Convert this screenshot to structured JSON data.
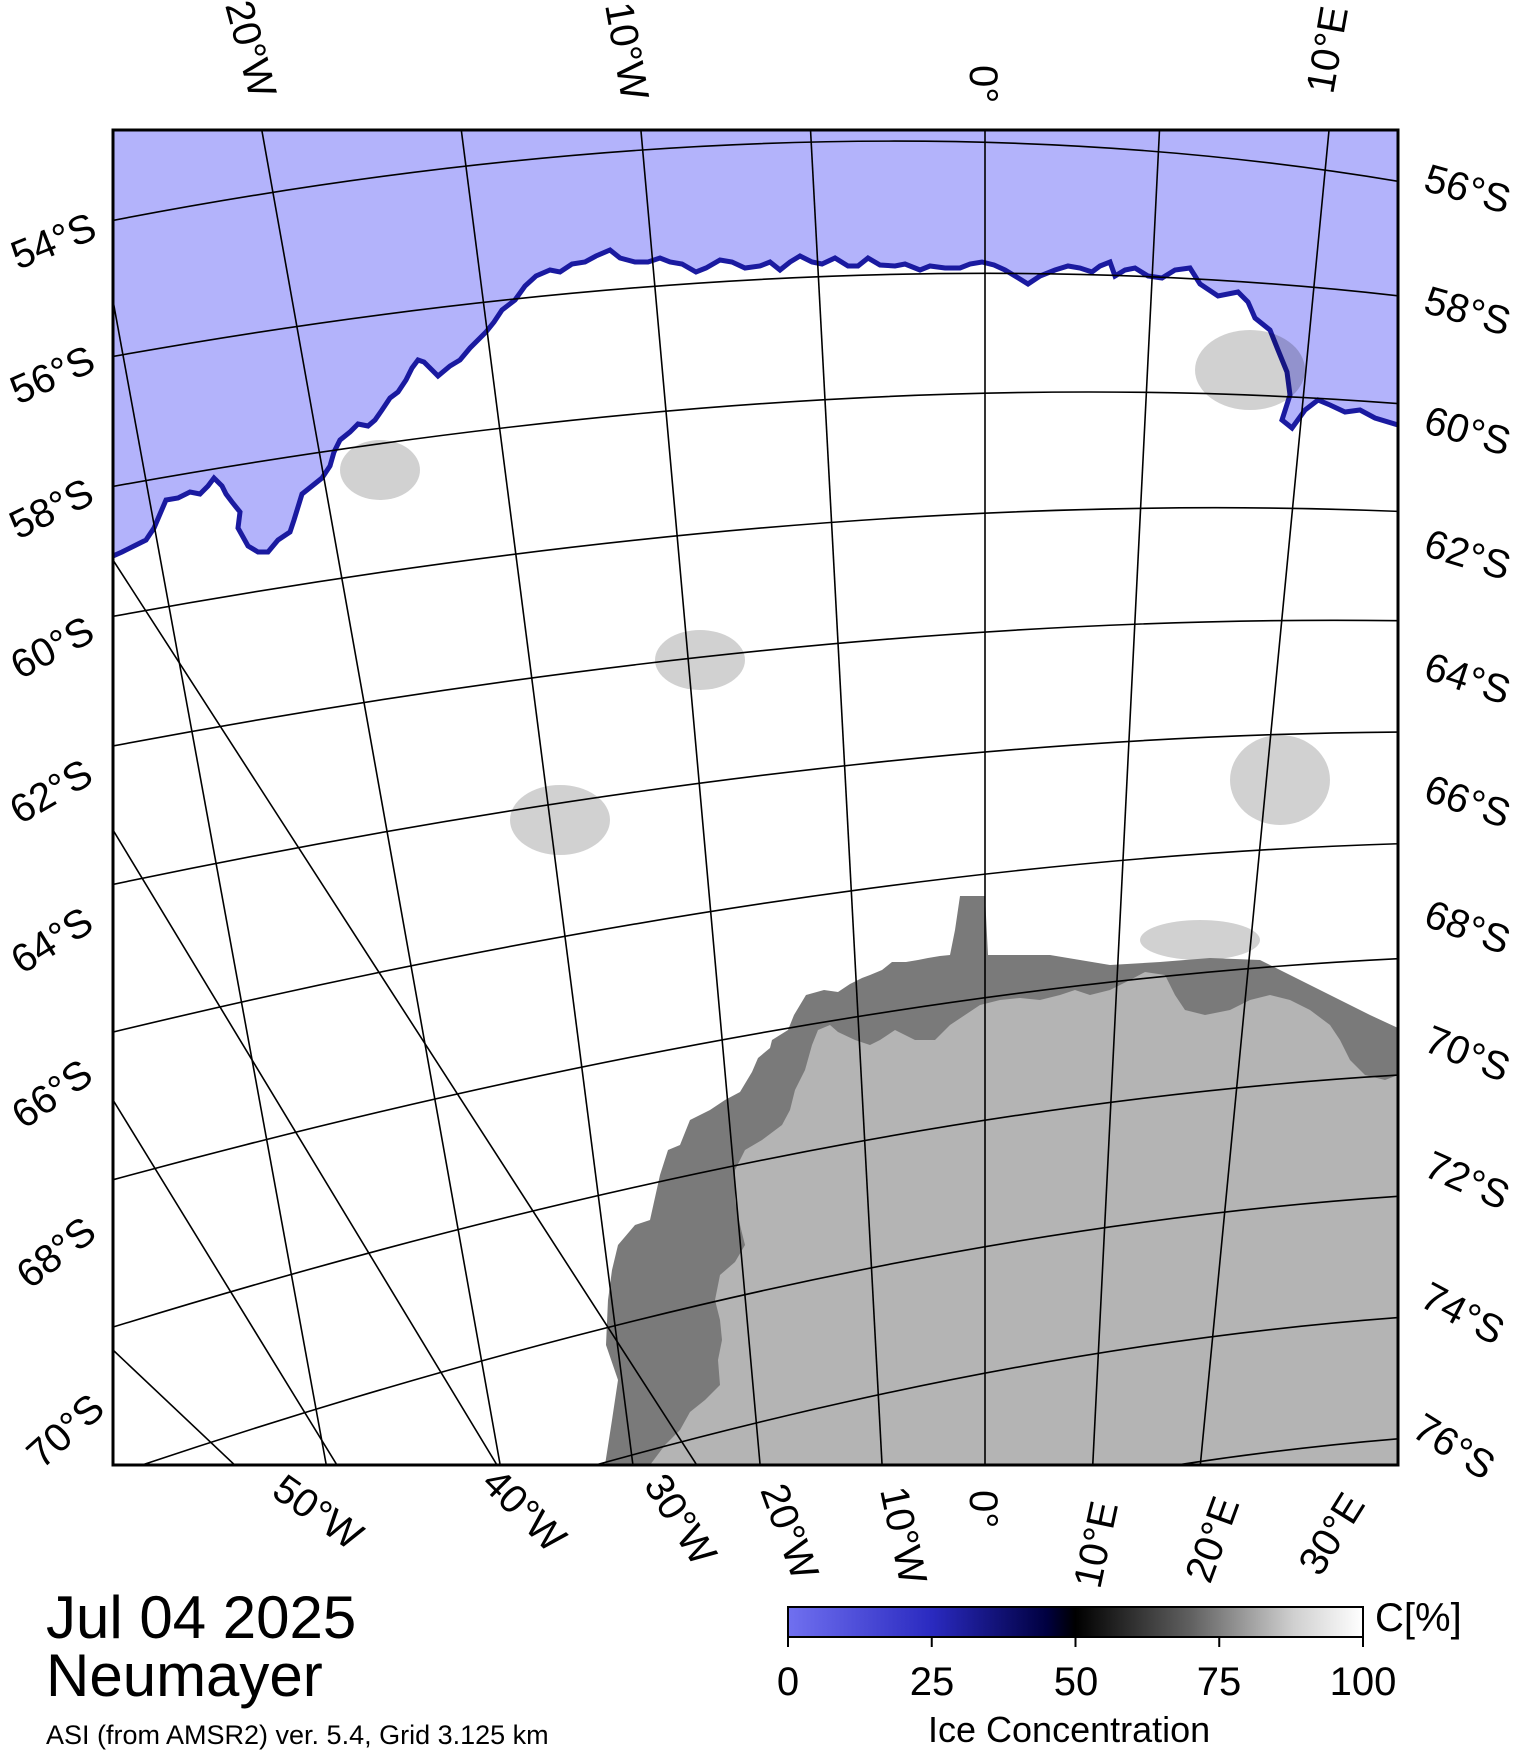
{
  "map": {
    "date": "Jul 04 2025",
    "station": "Neumayer",
    "source_note": "ASI (from AMSR2) ver. 5.4,  Grid 3.125 km",
    "colors": {
      "open_water": "#b3b3fb",
      "ice_edge": "#1a1aa0",
      "sea_ice": "#ffffff",
      "ice_shelf": "#7a7a7a",
      "land": "#b4b4b4",
      "grid": "#000000"
    },
    "top_lon_labels": [
      "20°W",
      "10°W",
      "0°",
      "10°E"
    ],
    "bottom_lon_labels": [
      "50°W",
      "40°W",
      "30°W",
      "20°W",
      "10°W",
      "0°",
      "10°E",
      "20°E",
      "30°E"
    ],
    "left_lat_labels": [
      "54°S",
      "56°S",
      "58°S",
      "60°S",
      "62°S",
      "64°S",
      "66°S",
      "68°S",
      "70°S"
    ],
    "right_lat_labels": [
      "56°S",
      "58°S",
      "60°S",
      "62°S",
      "64°S",
      "66°S",
      "68°S",
      "70°S",
      "72°S",
      "74°S",
      "76°S"
    ]
  },
  "colorbar": {
    "label": "C[%]",
    "title": "Ice Concentration",
    "ticks": [
      "0",
      "25",
      "50",
      "75",
      "100"
    ],
    "gradient": [
      "#7070f0",
      "#3c3cc8",
      "#000040",
      "#000000",
      "#606060",
      "#d0d0d0",
      "#ffffff"
    ]
  }
}
